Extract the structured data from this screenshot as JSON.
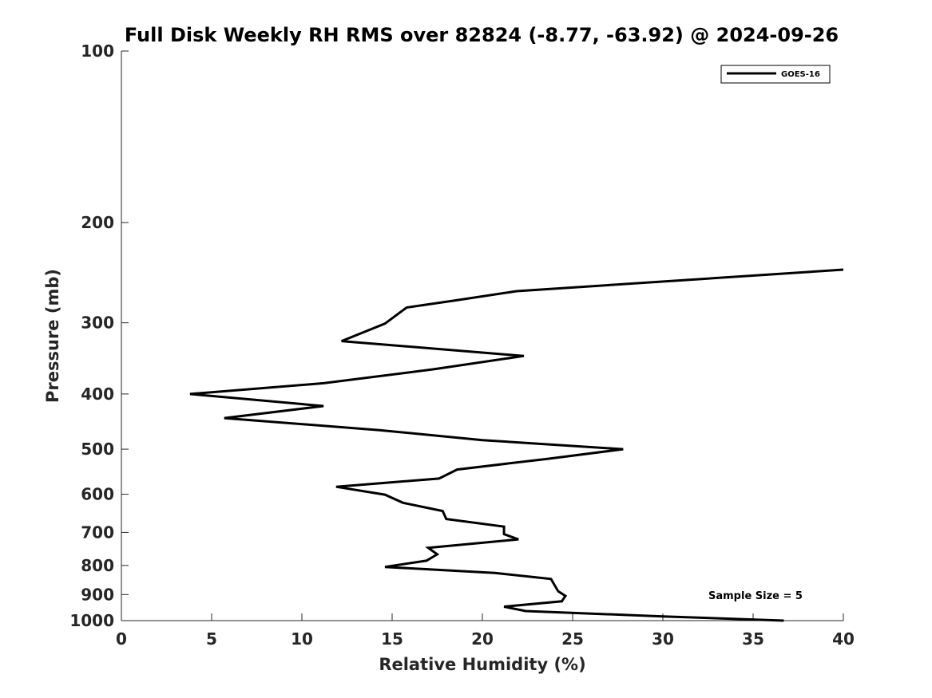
{
  "chart_data": {
    "type": "line",
    "title": "Full Disk Weekly RH RMS over 82824 (-8.77, -63.92) @ 2024-09-26",
    "xlabel": "Relative Humidity (%)",
    "ylabel": "Pressure (mb)",
    "xlim": [
      0,
      40
    ],
    "ylim": [
      100,
      1000
    ],
    "y_scale": "log",
    "y_reversed": true,
    "x_ticks": [
      0,
      5,
      10,
      15,
      20,
      25,
      30,
      35,
      40
    ],
    "y_ticks": [
      100,
      200,
      300,
      400,
      500,
      600,
      700,
      800,
      900,
      1000
    ],
    "grid": false,
    "legend_position": "top-right",
    "annotation": "Sample Size = 5",
    "series": [
      {
        "name": "GOES-16",
        "color": "#000000",
        "points": [
          {
            "x": 40.0,
            "y": 242
          },
          {
            "x": 21.9,
            "y": 264
          },
          {
            "x": 18.5,
            "y": 274
          },
          {
            "x": 15.8,
            "y": 282
          },
          {
            "x": 14.6,
            "y": 301
          },
          {
            "x": 12.2,
            "y": 323
          },
          {
            "x": 22.3,
            "y": 343
          },
          {
            "x": 17.3,
            "y": 362
          },
          {
            "x": 11.2,
            "y": 383
          },
          {
            "x": 3.8,
            "y": 400
          },
          {
            "x": 11.2,
            "y": 420
          },
          {
            "x": 5.7,
            "y": 441
          },
          {
            "x": 14.3,
            "y": 463
          },
          {
            "x": 20.0,
            "y": 482
          },
          {
            "x": 27.8,
            "y": 500
          },
          {
            "x": 23.6,
            "y": 520
          },
          {
            "x": 18.6,
            "y": 543
          },
          {
            "x": 17.6,
            "y": 563
          },
          {
            "x": 11.9,
            "y": 582
          },
          {
            "x": 14.6,
            "y": 601
          },
          {
            "x": 15.6,
            "y": 621
          },
          {
            "x": 17.8,
            "y": 642
          },
          {
            "x": 18.0,
            "y": 663
          },
          {
            "x": 21.2,
            "y": 684
          },
          {
            "x": 21.2,
            "y": 705
          },
          {
            "x": 22.0,
            "y": 720
          },
          {
            "x": 17.0,
            "y": 745
          },
          {
            "x": 17.5,
            "y": 765
          },
          {
            "x": 16.9,
            "y": 785
          },
          {
            "x": 14.6,
            "y": 805
          },
          {
            "x": 20.7,
            "y": 825
          },
          {
            "x": 23.8,
            "y": 845
          },
          {
            "x": 24.2,
            "y": 888
          },
          {
            "x": 24.6,
            "y": 905
          },
          {
            "x": 24.4,
            "y": 925
          },
          {
            "x": 21.2,
            "y": 945
          },
          {
            "x": 22.4,
            "y": 962
          },
          {
            "x": 30.0,
            "y": 983
          },
          {
            "x": 36.7,
            "y": 1000
          }
        ]
      }
    ]
  }
}
